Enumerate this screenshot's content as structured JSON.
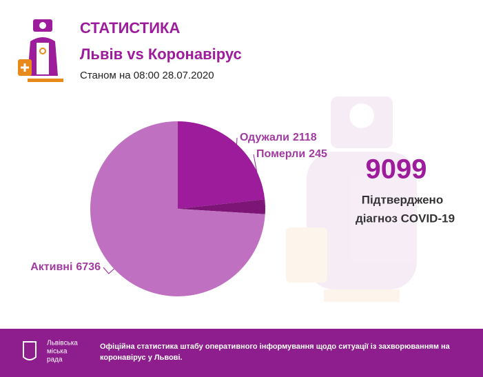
{
  "header": {
    "title": "СТАТИСТИКА",
    "subtitle": "Львів vs Коронавірус",
    "date": "Станом на 08:00 28.07.2020"
  },
  "chart_data": {
    "type": "pie",
    "categories": [
      "Одужали",
      "Померли",
      "Активні"
    ],
    "values": [
      2118,
      245,
      6736
    ],
    "colors": [
      "#9c1c9c",
      "#7d1577",
      "#c070c0"
    ]
  },
  "total": {
    "value": "9099",
    "line1": "Підтверджено",
    "line2": "діагноз COVID-19"
  },
  "footer": {
    "org": [
      "Львівська",
      "міська",
      "рада"
    ],
    "note": [
      "Офіційна статистика штабу оперативного інформування щодо ситуації із захворюванням на",
      "коронавірус у Львові."
    ]
  }
}
